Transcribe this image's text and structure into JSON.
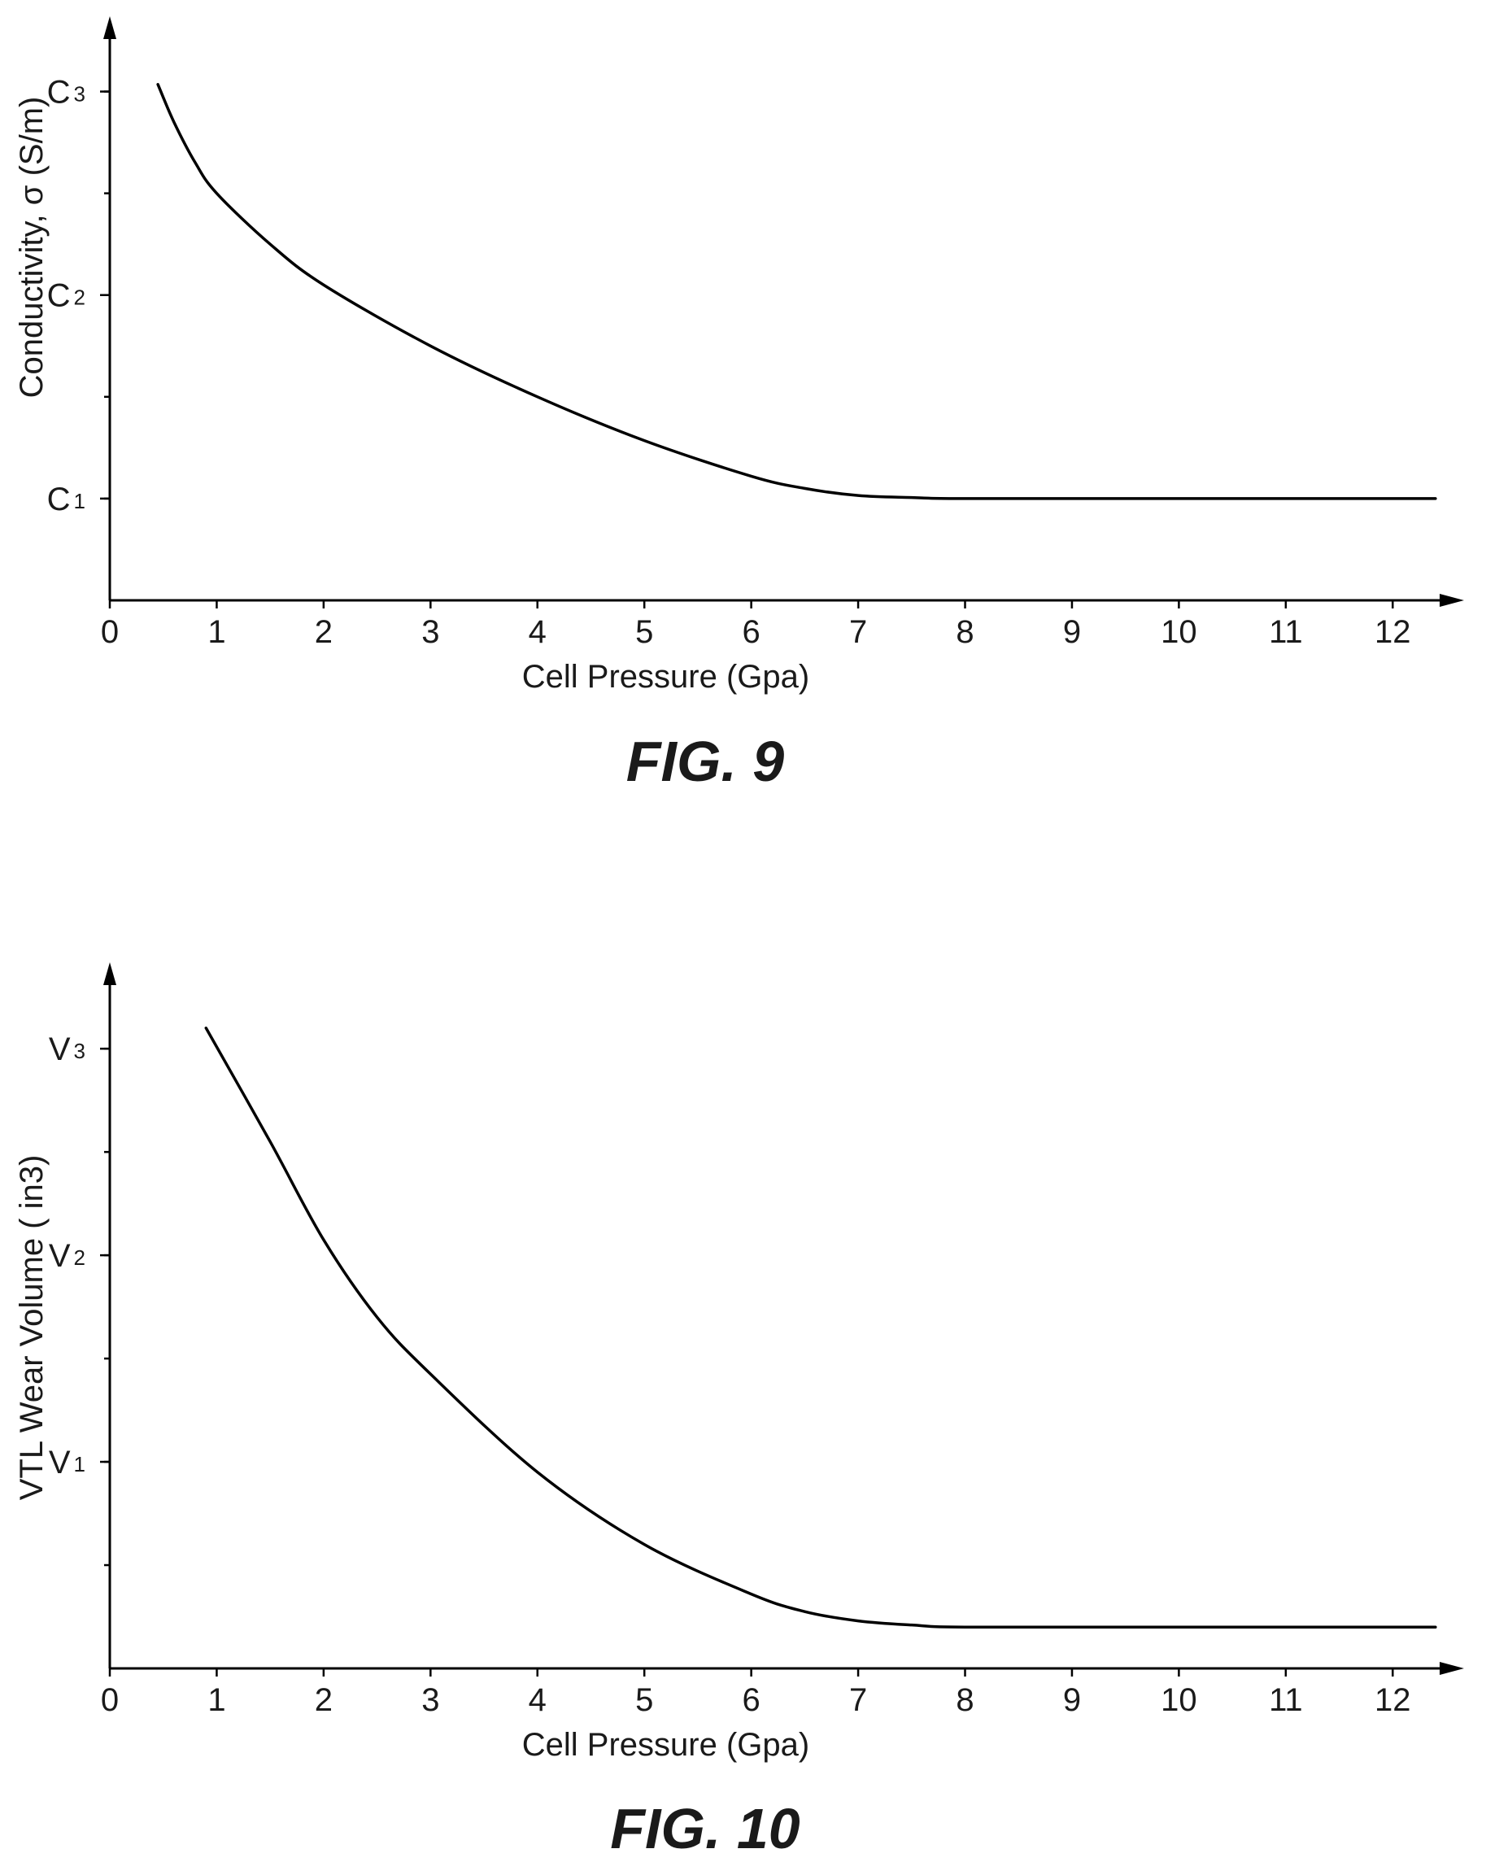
{
  "chart_data": [
    {
      "type": "line",
      "caption": "FIG. 9",
      "xlabel": "Cell Pressure (Gpa)",
      "ylabel": "Conductivity, σ (S/m)",
      "x_ticks": [
        "0",
        "1",
        "2",
        "3",
        "4",
        "5",
        "6",
        "7",
        "8",
        "9",
        "10",
        "11",
        "12"
      ],
      "xlim": [
        0,
        12.5
      ],
      "y_ticks": [
        {
          "base": "C",
          "sub": "1",
          "value": 1
        },
        {
          "base": "C",
          "sub": "2",
          "value": 3
        },
        {
          "base": "C",
          "sub": "3",
          "value": 5
        }
      ],
      "ylim": [
        0,
        5.5
      ],
      "series": [
        {
          "x": [
            0.45,
            0.6,
            0.8,
            1.0,
            1.5,
            2.0,
            3.0,
            4.0,
            5.0,
            6.0,
            6.5,
            7.0,
            7.5,
            8.0,
            10.0,
            12.4
          ],
          "y": [
            5.07,
            4.7,
            4.3,
            4.0,
            3.5,
            3.1,
            2.5,
            2.0,
            1.57,
            1.22,
            1.1,
            1.03,
            1.01,
            1.0,
            1.0,
            1.0
          ]
        }
      ]
    },
    {
      "type": "line",
      "caption": "FIG. 10",
      "xlabel": "Cell Pressure (Gpa)",
      "ylabel": "VTL Wear Volume ( in3)",
      "x_ticks": [
        "0",
        "1",
        "2",
        "3",
        "4",
        "5",
        "6",
        "7",
        "8",
        "9",
        "10",
        "11",
        "12"
      ],
      "xlim": [
        0,
        12.5
      ],
      "y_ticks": [
        {
          "base": "V",
          "sub": "1",
          "value": 2
        },
        {
          "base": "V",
          "sub": "2",
          "value": 4
        },
        {
          "base": "V",
          "sub": "3",
          "value": 6
        }
      ],
      "ylim": [
        0,
        6.6
      ],
      "series": [
        {
          "x": [
            0.9,
            1.5,
            2.0,
            2.5,
            3.0,
            4.0,
            5.0,
            6.0,
            6.5,
            7.0,
            7.5,
            8.0,
            10.0,
            12.4
          ],
          "y": [
            6.2,
            5.1,
            4.15,
            3.4,
            2.85,
            1.9,
            1.2,
            0.72,
            0.55,
            0.46,
            0.42,
            0.4,
            0.4,
            0.4
          ]
        }
      ]
    }
  ]
}
